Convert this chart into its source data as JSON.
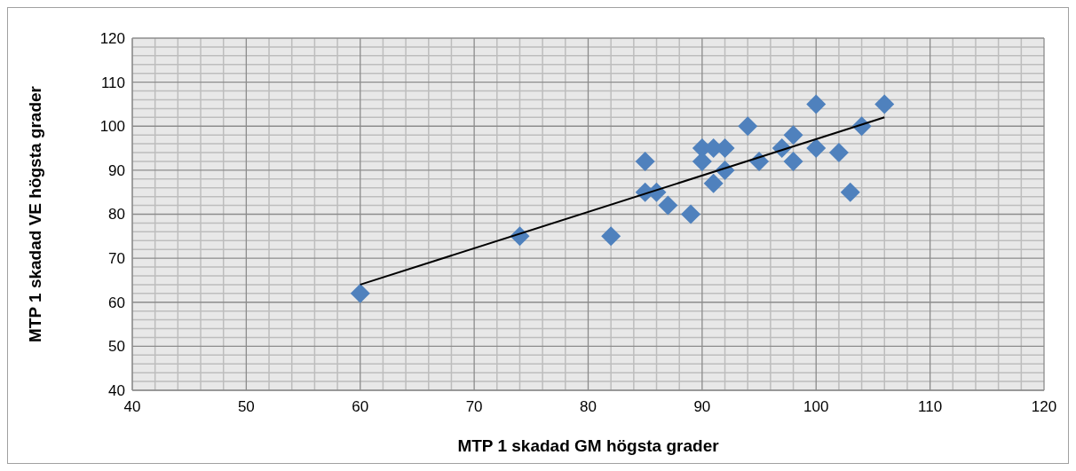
{
  "chart_data": {
    "type": "scatter",
    "xlabel": "MTP 1 skadad GM högsta grader",
    "ylabel": "MTP 1 skadad VE högsta grader",
    "xlim": [
      40,
      120
    ],
    "xticks": [
      40,
      50,
      60,
      70,
      80,
      90,
      100,
      110,
      120
    ],
    "ylim": [
      40,
      120
    ],
    "yticks": [
      40,
      50,
      60,
      70,
      80,
      90,
      100,
      110,
      120
    ],
    "grid": true,
    "marker": "diamond",
    "series": [
      {
        "color": "#4f81bd",
        "x": [
          60,
          74,
          82,
          85,
          85,
          86,
          87,
          89,
          90,
          90,
          91,
          92,
          91,
          92,
          94,
          95,
          97,
          98,
          98,
          100,
          100,
          102,
          103,
          104,
          106
        ],
        "values": [
          62,
          75,
          75,
          92,
          85,
          85,
          82,
          80,
          95,
          92,
          95,
          95,
          87,
          90,
          100,
          92,
          95,
          98,
          92,
          105,
          95,
          94,
          85,
          100,
          105
        ]
      },
      {
        "type": "line",
        "color": "#000000",
        "marker": "none",
        "x": [
          60,
          106
        ],
        "values": [
          64,
          102
        ]
      }
    ]
  }
}
